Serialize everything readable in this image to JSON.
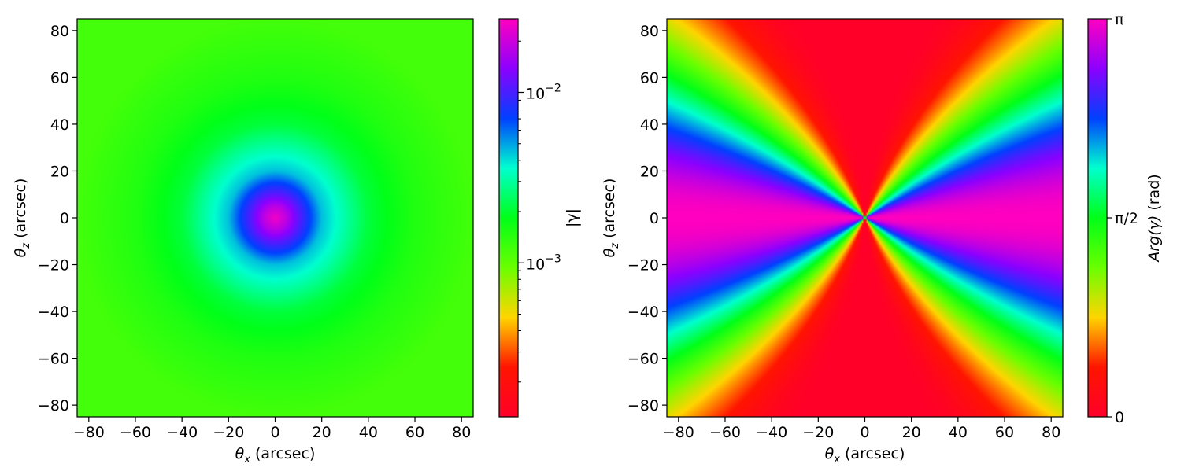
{
  "chart_data": [
    {
      "type": "heatmap",
      "quantity": "magnitude",
      "xlabel": {
        "symbol": "θ",
        "sub": "x",
        "rest": " (arcsec)"
      },
      "ylabel": {
        "symbol": "θ",
        "sub": "z",
        "rest": " (arcsec)"
      },
      "xlim": [
        -85,
        85
      ],
      "ylim": [
        -85,
        85
      ],
      "x_ticks": [
        -80,
        -60,
        -40,
        -20,
        0,
        20,
        40,
        60,
        80
      ],
      "y_ticks": [
        -80,
        -60,
        -40,
        -20,
        0,
        20,
        40,
        60,
        80
      ],
      "field": {
        "description": "radially symmetric, peaks at origin, decreasing with radius",
        "values_by_radius_arcsec": [
          [
            0,
            0.025
          ],
          [
            5,
            0.018
          ],
          [
            10,
            0.011
          ],
          [
            20,
            0.0045
          ],
          [
            30,
            0.0031
          ],
          [
            40,
            0.0021
          ],
          [
            60,
            0.0015
          ],
          [
            85,
            0.0012
          ]
        ]
      },
      "colorbar": {
        "label": "|γ|",
        "scale": "log",
        "range": [
          0.000125,
          0.027
        ],
        "major_ticks": [
          {
            "value": 0.01,
            "base": "10",
            "exp": "−2"
          },
          {
            "value": 0.001,
            "base": "10",
            "exp": "−3"
          }
        ],
        "minor_ticks": [
          0.0002,
          0.0003,
          0.0004,
          0.0005,
          0.0006,
          0.0007,
          0.0008,
          0.0009,
          0.002,
          0.003,
          0.004,
          0.005,
          0.006,
          0.007,
          0.008,
          0.009,
          0.02
        ],
        "colormap": "gist_rainbow_r"
      }
    },
    {
      "type": "heatmap",
      "quantity": "argument",
      "xlabel": {
        "symbol": "θ",
        "sub": "x",
        "rest": " (arcsec)"
      },
      "ylabel": {
        "symbol": "θ",
        "sub": "z",
        "rest": " (arcsec)"
      },
      "xlim": [
        -85,
        85
      ],
      "ylim": [
        -85,
        85
      ],
      "x_ticks": [
        -80,
        -60,
        -40,
        -20,
        0,
        20,
        40,
        60,
        80
      ],
      "y_ticks": [
        -80,
        -60,
        -40,
        -20,
        0,
        20,
        40,
        60,
        80
      ],
      "field": {
        "description": "angular pattern: 0 along vertical axis, π along horizontal axis"
      },
      "colorbar": {
        "label": {
          "italic": "Arg(γ)",
          "rest": " (rad)"
        },
        "scale": "linear",
        "range": [
          0,
          3.14159
        ],
        "major_ticks": [
          {
            "value": 0,
            "label": "0"
          },
          {
            "value": 1.5708,
            "label": "π/2"
          },
          {
            "value": 3.14159,
            "label": "π"
          }
        ],
        "colormap": "gist_rainbow_r"
      }
    }
  ],
  "colors": {
    "colormap_stops": [
      "#ff0029",
      "#ff1500",
      "#ffd500",
      "#6aff00",
      "#00ff18",
      "#00ffce",
      "#0040ff",
      "#8c00ff",
      "#ff00bf"
    ]
  }
}
